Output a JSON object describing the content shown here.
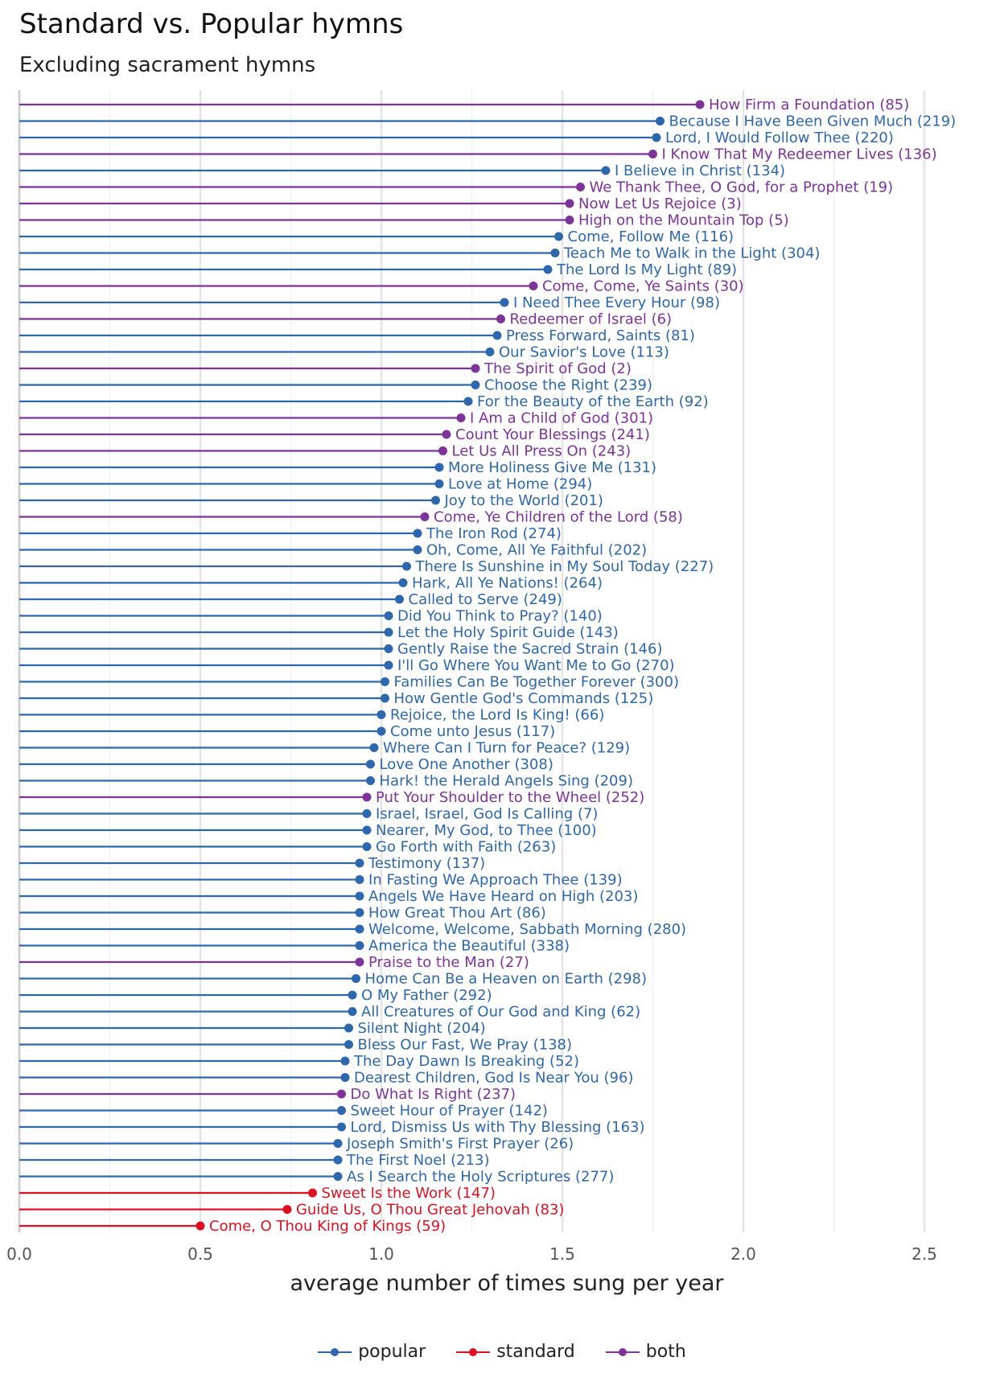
{
  "title": "Standard vs. Popular hymns",
  "subtitle": "Excluding sacrament hymns",
  "chart_data": {
    "type": "lollipop",
    "xlabel": "average number of times sung per year",
    "ylabel": "",
    "xlim": [
      0,
      2.72
    ],
    "xticks": [
      "0.0",
      "0.5",
      "1.0",
      "1.5",
      "2.0",
      "2.5"
    ],
    "xtick_values": [
      0,
      0.5,
      1.0,
      1.5,
      2.0,
      2.5
    ],
    "grid": true,
    "legend_position": "bottom",
    "colors": {
      "popular": "#2d67ad",
      "standard": "#e01020",
      "both": "#7e339a"
    },
    "legend": [
      {
        "key": "popular",
        "label": "popular"
      },
      {
        "key": "standard",
        "label": "standard"
      },
      {
        "key": "both",
        "label": "both"
      }
    ],
    "points": [
      {
        "label": "How Firm a Foundation (85)",
        "value": 1.88,
        "group": "both"
      },
      {
        "label": "Because I Have Been Given Much (219)",
        "value": 1.77,
        "group": "popular"
      },
      {
        "label": "Lord, I Would Follow Thee (220)",
        "value": 1.76,
        "group": "popular"
      },
      {
        "label": "I Know That My Redeemer Lives (136)",
        "value": 1.75,
        "group": "both"
      },
      {
        "label": "I Believe in Christ (134)",
        "value": 1.62,
        "group": "popular"
      },
      {
        "label": "We Thank Thee, O God, for a Prophet (19)",
        "value": 1.55,
        "group": "both"
      },
      {
        "label": "Now Let Us Rejoice (3)",
        "value": 1.52,
        "group": "both"
      },
      {
        "label": "High on the Mountain Top (5)",
        "value": 1.52,
        "group": "both"
      },
      {
        "label": "Come, Follow Me (116)",
        "value": 1.49,
        "group": "popular"
      },
      {
        "label": "Teach Me to Walk in the Light (304)",
        "value": 1.48,
        "group": "popular"
      },
      {
        "label": "The Lord Is My Light (89)",
        "value": 1.46,
        "group": "popular"
      },
      {
        "label": "Come, Come, Ye Saints (30)",
        "value": 1.42,
        "group": "both"
      },
      {
        "label": "I Need Thee Every Hour (98)",
        "value": 1.34,
        "group": "popular"
      },
      {
        "label": "Redeemer of Israel (6)",
        "value": 1.33,
        "group": "both"
      },
      {
        "label": "Press Forward, Saints (81)",
        "value": 1.32,
        "group": "popular"
      },
      {
        "label": "Our Savior's Love (113)",
        "value": 1.3,
        "group": "popular"
      },
      {
        "label": "The Spirit of God (2)",
        "value": 1.26,
        "group": "both"
      },
      {
        "label": "Choose the Right (239)",
        "value": 1.26,
        "group": "popular"
      },
      {
        "label": "For the Beauty of the Earth (92)",
        "value": 1.24,
        "group": "popular"
      },
      {
        "label": "I Am a Child of God (301)",
        "value": 1.22,
        "group": "both"
      },
      {
        "label": "Count Your Blessings (241)",
        "value": 1.18,
        "group": "both"
      },
      {
        "label": "Let Us All Press On (243)",
        "value": 1.17,
        "group": "both"
      },
      {
        "label": "More Holiness Give Me (131)",
        "value": 1.16,
        "group": "popular"
      },
      {
        "label": "Love at Home (294)",
        "value": 1.16,
        "group": "popular"
      },
      {
        "label": "Joy to the World (201)",
        "value": 1.15,
        "group": "popular"
      },
      {
        "label": "Come, Ye Children of the Lord (58)",
        "value": 1.12,
        "group": "both"
      },
      {
        "label": "The Iron Rod (274)",
        "value": 1.1,
        "group": "popular"
      },
      {
        "label": "Oh, Come, All Ye Faithful (202)",
        "value": 1.1,
        "group": "popular"
      },
      {
        "label": "There Is Sunshine in My Soul Today (227)",
        "value": 1.07,
        "group": "popular"
      },
      {
        "label": "Hark, All Ye Nations! (264)",
        "value": 1.06,
        "group": "popular"
      },
      {
        "label": "Called to Serve (249)",
        "value": 1.05,
        "group": "popular"
      },
      {
        "label": "Did You Think to Pray? (140)",
        "value": 1.02,
        "group": "popular"
      },
      {
        "label": "Let the Holy Spirit Guide (143)",
        "value": 1.02,
        "group": "popular"
      },
      {
        "label": "Gently Raise the Sacred Strain (146)",
        "value": 1.02,
        "group": "popular"
      },
      {
        "label": "I'll Go Where You Want Me to Go (270)",
        "value": 1.02,
        "group": "popular"
      },
      {
        "label": "Families Can Be Together Forever (300)",
        "value": 1.01,
        "group": "popular"
      },
      {
        "label": "How Gentle God's Commands (125)",
        "value": 1.01,
        "group": "popular"
      },
      {
        "label": "Rejoice, the Lord Is King! (66)",
        "value": 1.0,
        "group": "popular"
      },
      {
        "label": "Come unto Jesus (117)",
        "value": 1.0,
        "group": "popular"
      },
      {
        "label": "Where Can I Turn for Peace? (129)",
        "value": 0.98,
        "group": "popular"
      },
      {
        "label": "Love One Another (308)",
        "value": 0.97,
        "group": "popular"
      },
      {
        "label": "Hark! the Herald Angels Sing (209)",
        "value": 0.97,
        "group": "popular"
      },
      {
        "label": "Put Your Shoulder to the Wheel (252)",
        "value": 0.96,
        "group": "both"
      },
      {
        "label": "Israel, Israel, God Is Calling (7)",
        "value": 0.96,
        "group": "popular"
      },
      {
        "label": "Nearer, My God, to Thee (100)",
        "value": 0.96,
        "group": "popular"
      },
      {
        "label": "Go Forth with Faith (263)",
        "value": 0.96,
        "group": "popular"
      },
      {
        "label": "Testimony (137)",
        "value": 0.94,
        "group": "popular"
      },
      {
        "label": "In Fasting We Approach Thee (139)",
        "value": 0.94,
        "group": "popular"
      },
      {
        "label": "Angels We Have Heard on High (203)",
        "value": 0.94,
        "group": "popular"
      },
      {
        "label": "How Great Thou Art (86)",
        "value": 0.94,
        "group": "popular"
      },
      {
        "label": "Welcome, Welcome, Sabbath Morning (280)",
        "value": 0.94,
        "group": "popular"
      },
      {
        "label": "America the Beautiful (338)",
        "value": 0.94,
        "group": "popular"
      },
      {
        "label": "Praise to the Man (27)",
        "value": 0.94,
        "group": "both"
      },
      {
        "label": "Home Can Be a Heaven on Earth (298)",
        "value": 0.93,
        "group": "popular"
      },
      {
        "label": "O My Father (292)",
        "value": 0.92,
        "group": "popular"
      },
      {
        "label": "All Creatures of Our God and King (62)",
        "value": 0.92,
        "group": "popular"
      },
      {
        "label": "Silent Night (204)",
        "value": 0.91,
        "group": "popular"
      },
      {
        "label": "Bless Our Fast, We Pray (138)",
        "value": 0.91,
        "group": "popular"
      },
      {
        "label": "The Day Dawn Is Breaking (52)",
        "value": 0.9,
        "group": "popular"
      },
      {
        "label": "Dearest Children, God Is Near You (96)",
        "value": 0.9,
        "group": "popular"
      },
      {
        "label": "Do What Is Right (237)",
        "value": 0.89,
        "group": "both"
      },
      {
        "label": "Sweet Hour of Prayer (142)",
        "value": 0.89,
        "group": "popular"
      },
      {
        "label": "Lord, Dismiss Us with Thy Blessing (163)",
        "value": 0.89,
        "group": "popular"
      },
      {
        "label": "Joseph Smith's First Prayer (26)",
        "value": 0.88,
        "group": "popular"
      },
      {
        "label": "The First Noel (213)",
        "value": 0.88,
        "group": "popular"
      },
      {
        "label": "As I Search the Holy Scriptures (277)",
        "value": 0.88,
        "group": "popular"
      },
      {
        "label": "Sweet Is the Work (147)",
        "value": 0.81,
        "group": "standard"
      },
      {
        "label": "Guide Us, O Thou Great Jehovah (83)",
        "value": 0.74,
        "group": "standard"
      },
      {
        "label": "Come, O Thou King of Kings (59)",
        "value": 0.5,
        "group": "standard"
      }
    ]
  }
}
